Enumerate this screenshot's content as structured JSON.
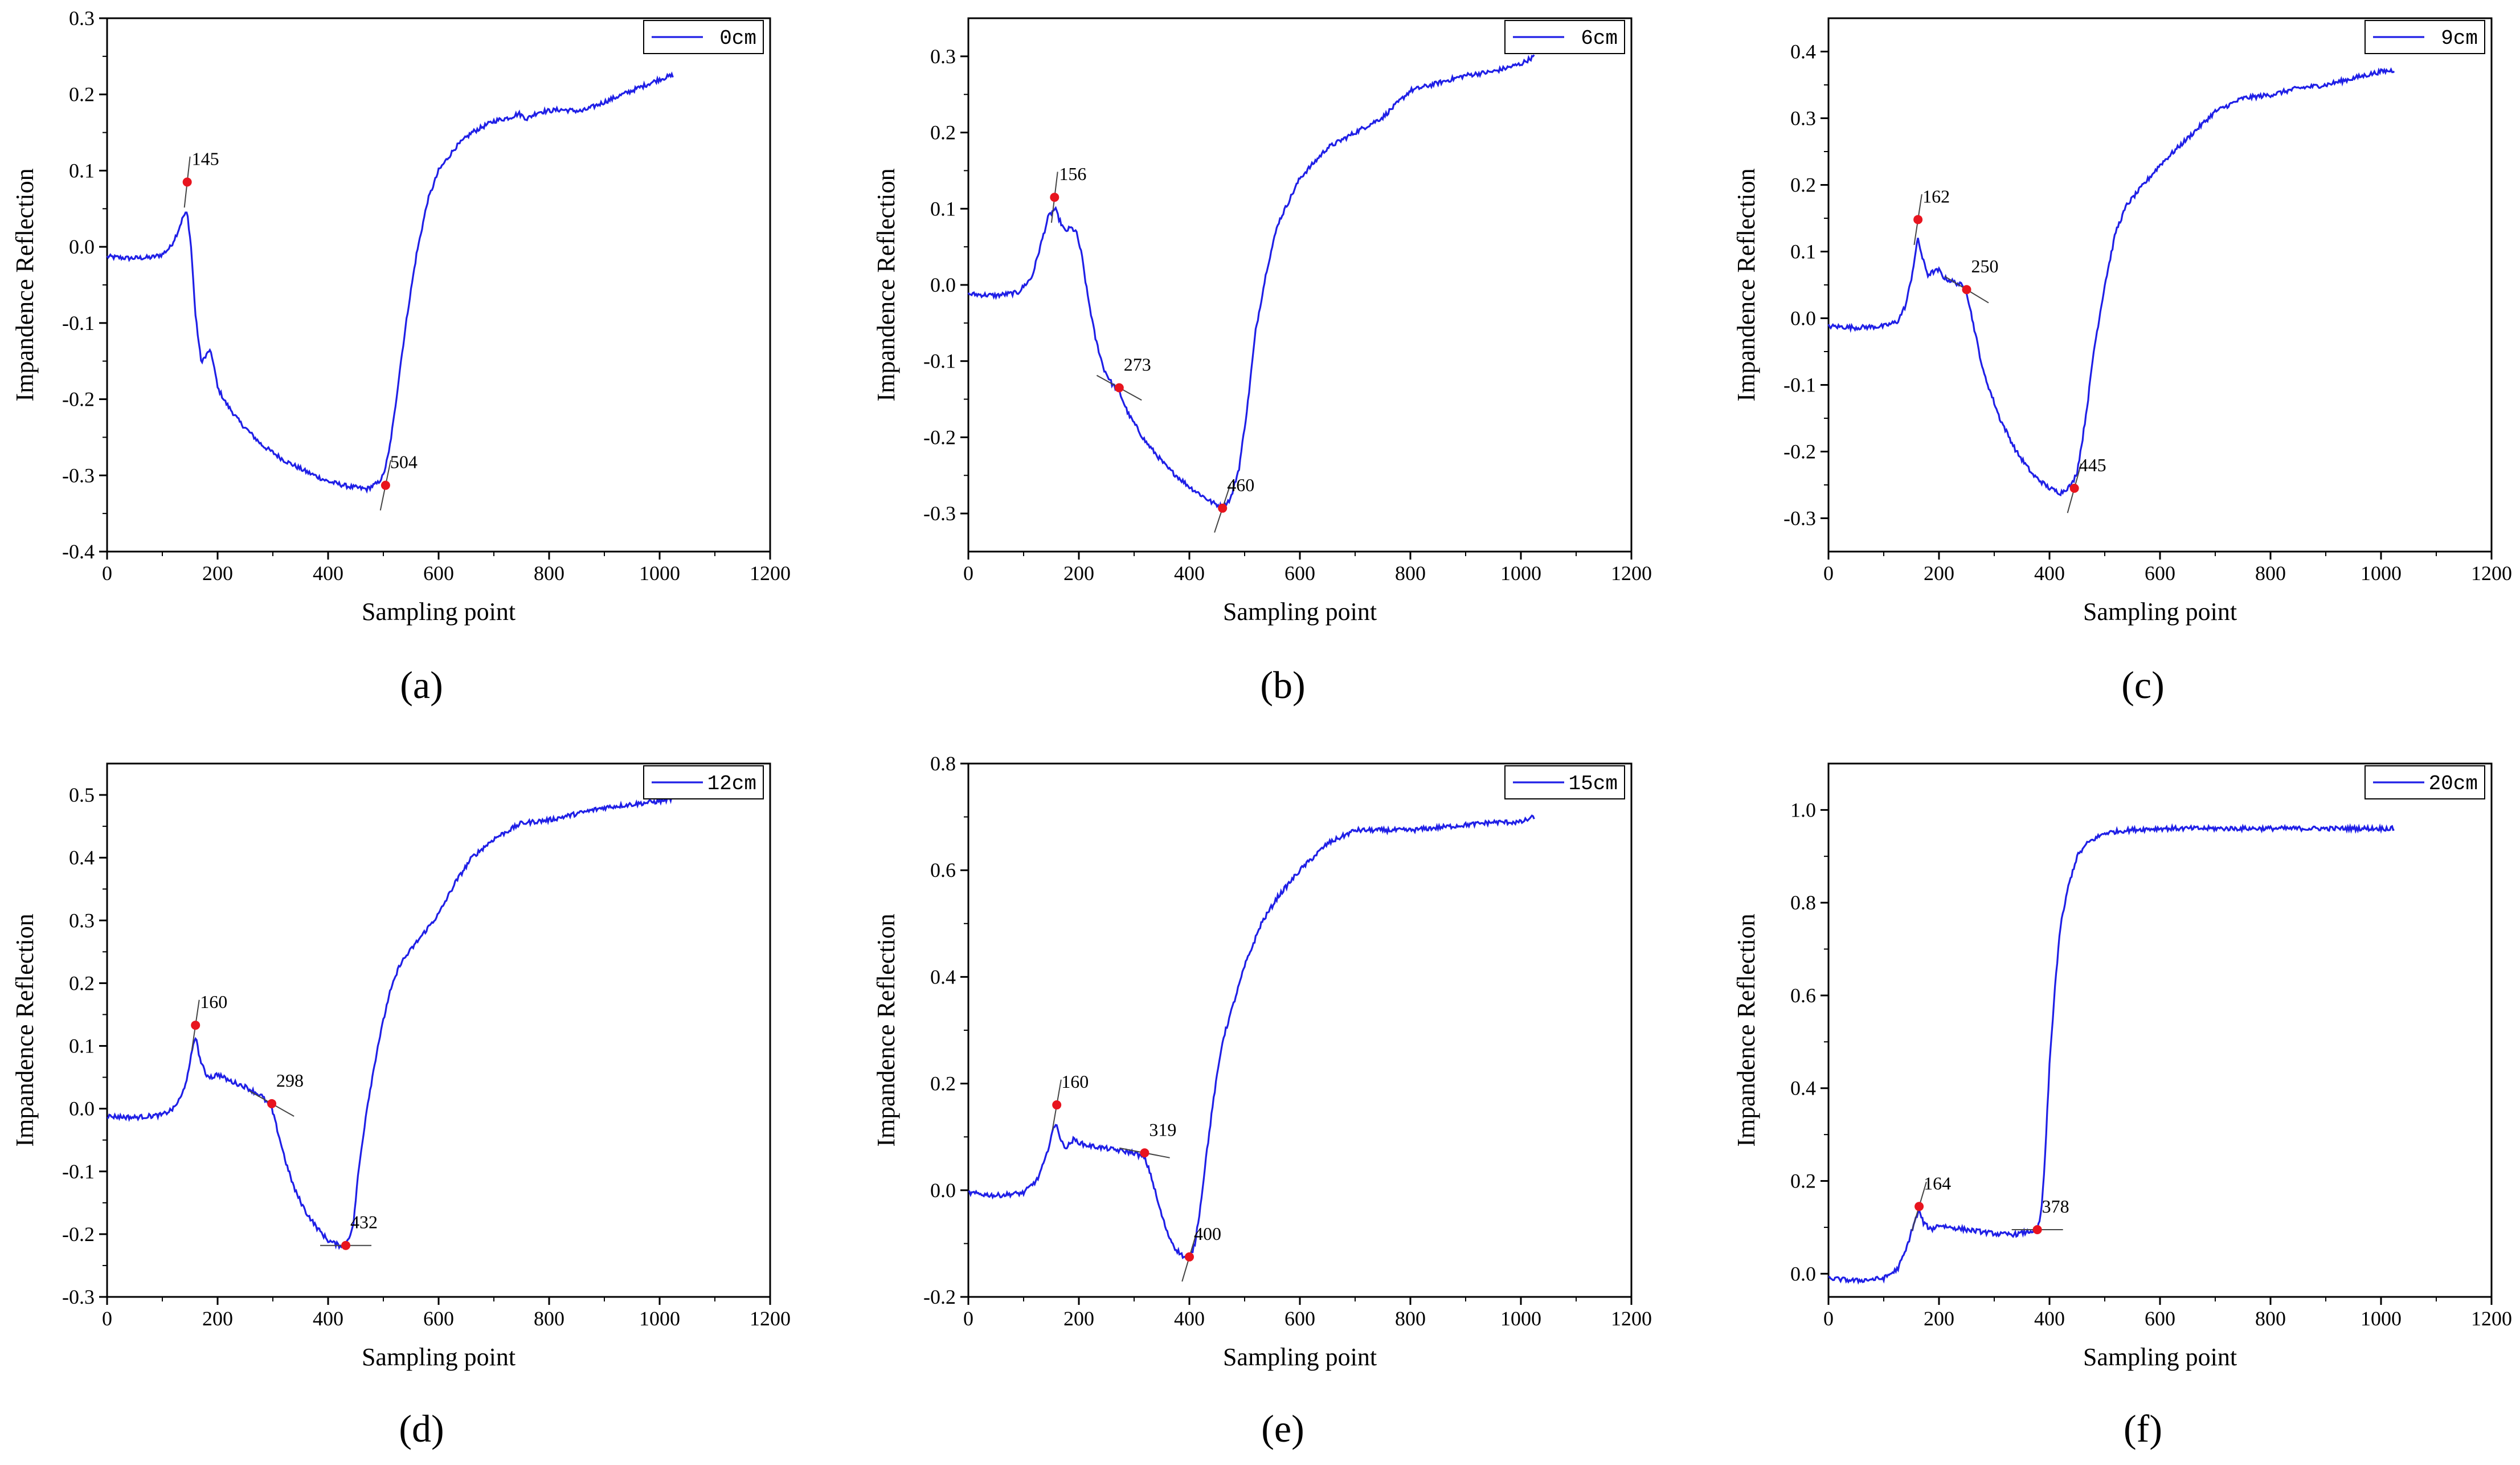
{
  "figure": {
    "panels_count": 6
  },
  "chart_data": [
    {
      "type": "line",
      "panel_label": "(a)",
      "legend": "0cm",
      "xlabel": "Sampling point",
      "ylabel": "Impandence Reflection",
      "xlim": [
        0,
        1200
      ],
      "ylim": [
        -0.4,
        0.3
      ],
      "xticks": [
        0,
        200,
        400,
        600,
        800,
        1000,
        1200
      ],
      "yticks": [
        -0.4,
        -0.3,
        -0.2,
        -0.1,
        0.0,
        0.1,
        0.2,
        0.3
      ],
      "ytick_labels": [
        "-0.4",
        "-0.3",
        "-0.2",
        "-0.1",
        "0.0",
        "0.1",
        "0.2",
        "0.3"
      ],
      "series": [
        {
          "name": "0cm",
          "color": "#1f1fe6",
          "x": [
            0,
            40,
            80,
            100,
            115,
            128,
            138,
            145,
            152,
            160,
            170,
            178,
            185,
            192,
            200,
            215,
            240,
            280,
            320,
            360,
            400,
            440,
            470,
            490,
            500,
            510,
            520,
            530,
            545,
            560,
            580,
            600,
            630,
            660,
            700,
            730,
            745,
            760,
            780,
            820,
            860,
            900,
            950,
            1000,
            1024
          ],
          "values": [
            -0.013,
            -0.015,
            -0.014,
            -0.01,
            0.0,
            0.02,
            0.04,
            0.045,
            0.0,
            -0.09,
            -0.15,
            -0.145,
            -0.135,
            -0.15,
            -0.185,
            -0.205,
            -0.23,
            -0.26,
            -0.28,
            -0.295,
            -0.308,
            -0.315,
            -0.318,
            -0.31,
            -0.3,
            -0.27,
            -0.22,
            -0.16,
            -0.08,
            -0.01,
            0.06,
            0.1,
            0.13,
            0.15,
            0.165,
            0.17,
            0.175,
            0.168,
            0.177,
            0.18,
            0.178,
            0.19,
            0.205,
            0.22,
            0.225
          ]
        }
      ],
      "markers": [
        {
          "label": "145",
          "x": 145,
          "y": 0.085,
          "tangent_slope": 0.0065
        },
        {
          "label": "504",
          "x": 504,
          "y": -0.313,
          "tangent_slope": 0.0035
        }
      ]
    },
    {
      "type": "line",
      "panel_label": "(b)",
      "legend": "6cm",
      "xlabel": "Sampling point",
      "ylabel": "Impandence Reflection",
      "xlim": [
        0,
        1200
      ],
      "ylim": [
        -0.35,
        0.35
      ],
      "xticks": [
        0,
        200,
        400,
        600,
        800,
        1000,
        1200
      ],
      "yticks": [
        -0.3,
        -0.2,
        -0.1,
        0.0,
        0.1,
        0.2,
        0.3
      ],
      "ytick_labels": [
        "-0.3",
        "-0.2",
        "-0.1",
        "0.0",
        "0.1",
        "0.2",
        "0.3"
      ],
      "series": [
        {
          "name": "6cm",
          "color": "#1f1fe6",
          "x": [
            0,
            50,
            90,
            115,
            130,
            145,
            157,
            165,
            175,
            185,
            195,
            205,
            215,
            230,
            245,
            260,
            273,
            290,
            320,
            360,
            400,
            440,
            460,
            475,
            490,
            505,
            520,
            540,
            560,
            600,
            650,
            700,
            750,
            800,
            850,
            900,
            950,
            1000,
            1024
          ],
          "values": [
            -0.012,
            -0.014,
            -0.01,
            0.01,
            0.05,
            0.09,
            0.1,
            0.085,
            0.07,
            0.075,
            0.07,
            0.04,
            -0.01,
            -0.07,
            -0.11,
            -0.13,
            -0.14,
            -0.17,
            -0.205,
            -0.24,
            -0.265,
            -0.285,
            -0.292,
            -0.28,
            -0.24,
            -0.16,
            -0.06,
            0.02,
            0.08,
            0.14,
            0.18,
            0.2,
            0.22,
            0.255,
            0.265,
            0.275,
            0.28,
            0.29,
            0.3
          ]
        }
      ],
      "markers": [
        {
          "label": "156",
          "x": 156,
          "y": 0.115,
          "tangent_slope": 0.006
        },
        {
          "label": "273",
          "x": 273,
          "y": -0.135,
          "tangent_slope": -0.0004
        },
        {
          "label": "460",
          "x": 460,
          "y": -0.293,
          "tangent_slope": 0.0022
        }
      ]
    },
    {
      "type": "line",
      "panel_label": "(c)",
      "legend": "9cm",
      "xlabel": "Sampling point",
      "ylabel": "Impandence Reflection",
      "xlim": [
        0,
        1200
      ],
      "ylim": [
        -0.35,
        0.45
      ],
      "xticks": [
        0,
        200,
        400,
        600,
        800,
        1000,
        1200
      ],
      "yticks": [
        -0.3,
        -0.2,
        -0.1,
        0.0,
        0.1,
        0.2,
        0.3,
        0.4
      ],
      "ytick_labels": [
        "-0.3",
        "-0.2",
        "-0.1",
        "0.0",
        "0.1",
        "0.2",
        "0.3",
        "0.4"
      ],
      "series": [
        {
          "name": "9cm",
          "color": "#1f1fe6",
          "x": [
            0,
            50,
            100,
            125,
            140,
            150,
            158,
            162,
            170,
            180,
            190,
            200,
            210,
            225,
            240,
            250,
            260,
            280,
            310,
            340,
            370,
            400,
            420,
            440,
            450,
            460,
            470,
            480,
            500,
            520,
            540,
            560,
            600,
            650,
            700,
            750,
            800,
            850,
            900,
            950,
            1000,
            1024
          ],
          "values": [
            -0.012,
            -0.014,
            -0.012,
            -0.005,
            0.02,
            0.06,
            0.1,
            0.12,
            0.09,
            0.065,
            0.07,
            0.072,
            0.06,
            0.055,
            0.05,
            0.04,
            0.0,
            -0.08,
            -0.15,
            -0.2,
            -0.235,
            -0.255,
            -0.262,
            -0.25,
            -0.23,
            -0.18,
            -0.12,
            -0.05,
            0.05,
            0.13,
            0.17,
            0.19,
            0.23,
            0.27,
            0.31,
            0.33,
            0.335,
            0.345,
            0.35,
            0.36,
            0.37,
            0.372
          ]
        }
      ],
      "markers": [
        {
          "label": "162",
          "x": 162,
          "y": 0.148,
          "tangent_slope": 0.0055
        },
        {
          "label": "250",
          "x": 250,
          "y": 0.043,
          "tangent_slope": -0.0005
        },
        {
          "label": "445",
          "x": 445,
          "y": -0.255,
          "tangent_slope": 0.003
        }
      ]
    },
    {
      "type": "line",
      "panel_label": "(d)",
      "legend": "12cm",
      "xlabel": "Sampling point",
      "ylabel": "Impandence Reflection",
      "xlim": [
        0,
        1200
      ],
      "ylim": [
        -0.3,
        0.55
      ],
      "xticks": [
        0,
        200,
        400,
        600,
        800,
        1000,
        1200
      ],
      "yticks": [
        -0.3,
        -0.2,
        -0.1,
        0.0,
        0.1,
        0.2,
        0.3,
        0.4,
        0.5
      ],
      "ytick_labels": [
        "-0.3",
        "-0.2",
        "-0.1",
        "0.0",
        "0.1",
        "0.2",
        "0.3",
        "0.4",
        "0.5"
      ],
      "series": [
        {
          "name": "12cm",
          "color": "#1f1fe6",
          "x": [
            0,
            50,
            100,
            120,
            135,
            148,
            155,
            160,
            168,
            178,
            190,
            200,
            220,
            250,
            280,
            298,
            310,
            325,
            340,
            360,
            380,
            400,
            420,
            432,
            445,
            455,
            470,
            490,
            510,
            530,
            560,
            600,
            630,
            660,
            700,
            750,
            800,
            850,
            900,
            950,
            1000,
            1024
          ],
          "values": [
            -0.012,
            -0.014,
            -0.01,
            0.0,
            0.02,
            0.06,
            0.1,
            0.115,
            0.08,
            0.055,
            0.05,
            0.055,
            0.045,
            0.035,
            0.02,
            0.0,
            -0.04,
            -0.09,
            -0.13,
            -0.165,
            -0.19,
            -0.21,
            -0.218,
            -0.215,
            -0.19,
            -0.1,
            0.0,
            0.1,
            0.18,
            0.23,
            0.265,
            0.31,
            0.36,
            0.4,
            0.43,
            0.455,
            0.46,
            0.47,
            0.48,
            0.485,
            0.49,
            0.495
          ]
        }
      ],
      "markers": [
        {
          "label": "160",
          "x": 160,
          "y": 0.133,
          "tangent_slope": 0.006
        },
        {
          "label": "298",
          "x": 298,
          "y": 0.008,
          "tangent_slope": -0.0005
        },
        {
          "label": "432",
          "x": 432,
          "y": -0.218,
          "tangent_slope": 0.0
        }
      ]
    },
    {
      "type": "line",
      "panel_label": "(e)",
      "legend": "15cm",
      "xlabel": "Sampling point",
      "ylabel": "Impandence Reflection",
      "xlim": [
        0,
        1200
      ],
      "ylim": [
        -0.2,
        0.8
      ],
      "xticks": [
        0,
        200,
        400,
        600,
        800,
        1000,
        1200
      ],
      "yticks": [
        -0.2,
        0.0,
        0.2,
        0.4,
        0.6,
        0.8
      ],
      "ytick_labels": [
        "-0.2",
        "0.0",
        "0.2",
        "0.4",
        "0.6",
        "0.8"
      ],
      "series": [
        {
          "name": "15cm",
          "color": "#1f1fe6",
          "x": [
            0,
            50,
            100,
            125,
            140,
            152,
            160,
            168,
            178,
            190,
            210,
            240,
            270,
            300,
            319,
            330,
            345,
            360,
            375,
            390,
            400,
            410,
            420,
            430,
            445,
            460,
            480,
            500,
            530,
            560,
            600,
            650,
            700,
            750,
            800,
            850,
            900,
            950,
            1000,
            1024
          ],
          "values": [
            -0.005,
            -0.01,
            -0.005,
            0.02,
            0.06,
            0.11,
            0.125,
            0.09,
            0.08,
            0.095,
            0.085,
            0.08,
            0.075,
            0.07,
            0.06,
            0.03,
            -0.03,
            -0.08,
            -0.11,
            -0.125,
            -0.13,
            -0.1,
            -0.03,
            0.06,
            0.18,
            0.28,
            0.35,
            0.42,
            0.5,
            0.55,
            0.6,
            0.65,
            0.675,
            0.675,
            0.675,
            0.68,
            0.685,
            0.69,
            0.69,
            0.7
          ]
        }
      ],
      "markers": [
        {
          "label": "160",
          "x": 160,
          "y": 0.16,
          "tangent_slope": 0.006
        },
        {
          "label": "319",
          "x": 319,
          "y": 0.07,
          "tangent_slope": -0.0002
        },
        {
          "label": "400",
          "x": 400,
          "y": -0.125,
          "tangent_slope": 0.0035
        }
      ]
    },
    {
      "type": "line",
      "panel_label": "(f)",
      "legend": "20cm",
      "xlabel": "Sampling point",
      "ylabel": "Impandence Reflection",
      "xlim": [
        0,
        1200
      ],
      "ylim": [
        -0.05,
        1.1
      ],
      "xticks": [
        0,
        200,
        400,
        600,
        800,
        1000,
        1200
      ],
      "yticks": [
        0.0,
        0.2,
        0.4,
        0.6,
        0.8,
        1.0
      ],
      "ytick_labels": [
        "0.0",
        "0.2",
        "0.4",
        "0.6",
        "0.8",
        "1.0"
      ],
      "series": [
        {
          "name": "20cm",
          "color": "#1f1fe6",
          "x": [
            0,
            50,
            100,
            125,
            140,
            155,
            164,
            172,
            185,
            200,
            220,
            250,
            280,
            310,
            340,
            360,
            378,
            385,
            392,
            400,
            410,
            420,
            435,
            450,
            470,
            500,
            530,
            560,
            600,
            700,
            800,
            900,
            1000,
            1024
          ],
          "values": [
            -0.01,
            -0.015,
            -0.01,
            0.01,
            0.05,
            0.11,
            0.135,
            0.11,
            0.095,
            0.105,
            0.1,
            0.095,
            0.09,
            0.085,
            0.085,
            0.09,
            0.095,
            0.13,
            0.25,
            0.45,
            0.62,
            0.75,
            0.84,
            0.9,
            0.93,
            0.95,
            0.955,
            0.958,
            0.96,
            0.96,
            0.96,
            0.96,
            0.96,
            0.96
          ]
        }
      ],
      "markers": [
        {
          "label": "164",
          "x": 164,
          "y": 0.145,
          "tangent_slope": 0.004
        },
        {
          "label": "378",
          "x": 378,
          "y": 0.095,
          "tangent_slope": 0.0
        }
      ]
    }
  ]
}
